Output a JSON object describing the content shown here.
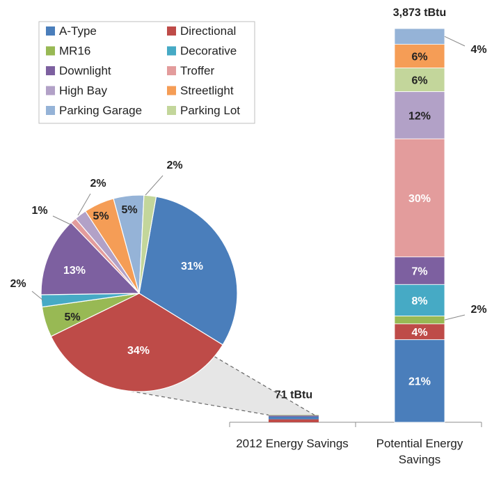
{
  "chart_data": {
    "type": "pie",
    "legend": {
      "placement": "top-left",
      "items": [
        {
          "name": "A-Type",
          "color": "#4a7ebb"
        },
        {
          "name": "Directional",
          "color": "#be4b48"
        },
        {
          "name": "MR16",
          "color": "#98b954"
        },
        {
          "name": "Decorative",
          "color": "#46aac5"
        },
        {
          "name": "Downlight",
          "color": "#7d60a0"
        },
        {
          "name": "Troffer",
          "color": "#e39c9c"
        },
        {
          "name": "High Bay",
          "color": "#b2a1c7"
        },
        {
          "name": "Streetlight",
          "color": "#f59d56"
        },
        {
          "name": "Parking Garage",
          "color": "#95b3d7"
        },
        {
          "name": "Parking Lot",
          "color": "#c3d69b"
        }
      ]
    },
    "pie": {
      "title": "",
      "slices": [
        {
          "name": "A-Type",
          "value": 31,
          "label": "31%"
        },
        {
          "name": "Directional",
          "value": 34,
          "label": "34%"
        },
        {
          "name": "MR16",
          "value": 5,
          "label": "5%"
        },
        {
          "name": "Decorative",
          "value": 2,
          "label": "2%"
        },
        {
          "name": "Downlight",
          "value": 13,
          "label": "13%"
        },
        {
          "name": "Troffer",
          "value": 1,
          "label": "1%"
        },
        {
          "name": "High Bay",
          "value": 2,
          "label": "2%"
        },
        {
          "name": "Streetlight",
          "value": 5,
          "label": "5%"
        },
        {
          "name": "Parking Garage",
          "value": 5,
          "label": "5%"
        },
        {
          "name": "Parking Lot",
          "value": 2,
          "label": "2%"
        }
      ]
    },
    "bars": {
      "type": "stacked-bar",
      "categories": [
        "2012 Energy Savings",
        "Potential Energy Savings"
      ],
      "totals": [
        71,
        3873
      ],
      "total_labels": [
        "71 tBtu",
        "3,873 tBtu"
      ],
      "unit": "tBtu",
      "potential_segments": [
        {
          "name": "A-Type",
          "value": 21,
          "label": "21%"
        },
        {
          "name": "Directional",
          "value": 4,
          "label": "4%"
        },
        {
          "name": "MR16",
          "value": 2,
          "label": "2%"
        },
        {
          "name": "Decorative",
          "value": 8,
          "label": "8%"
        },
        {
          "name": "Downlight",
          "value": 7,
          "label": "7%"
        },
        {
          "name": "Troffer",
          "value": 30,
          "label": "30%"
        },
        {
          "name": "High Bay",
          "value": 12,
          "label": "12%"
        },
        {
          "name": "Parking Lot",
          "value": 6,
          "label": "6%"
        },
        {
          "name": "Streetlight",
          "value": 6,
          "label": "6%"
        },
        {
          "name": "Parking Garage",
          "value": 4,
          "label": "4%"
        }
      ]
    }
  }
}
